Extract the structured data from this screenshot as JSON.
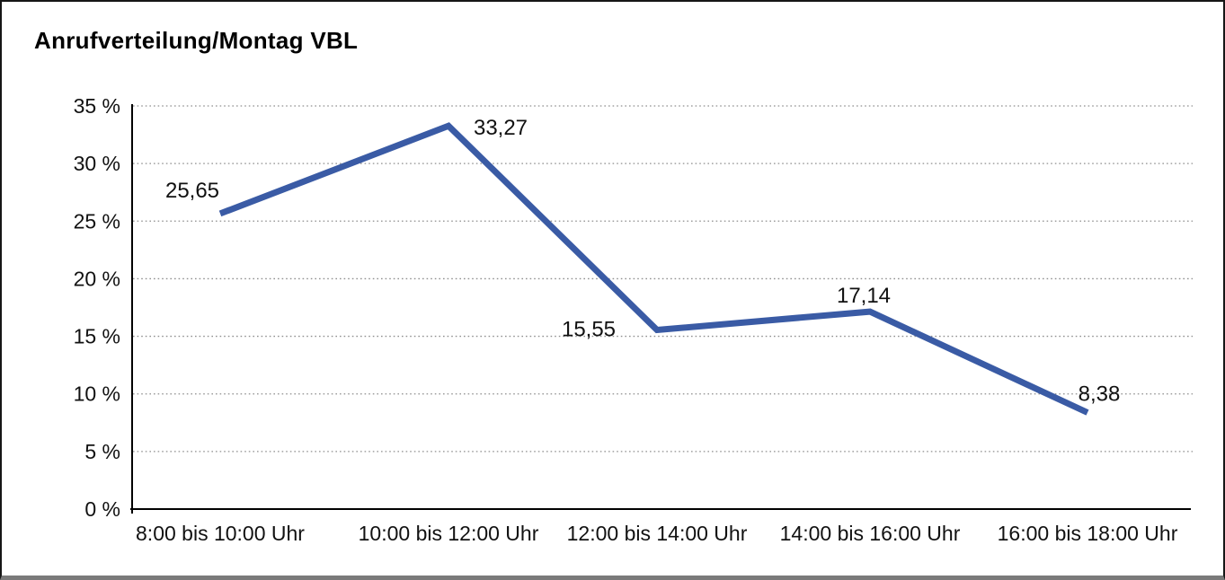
{
  "header": {
    "title": "Anrufverteilung/Montag VBL"
  },
  "chart_data": {
    "type": "line",
    "title": "Anrufverteilung/Montag VBL",
    "categories": [
      "8:00 bis 10:00 Uhr",
      "10:00 bis 12:00 Uhr",
      "12:00 bis 14:00 Uhr",
      "14:00 bis 16:00 Uhr",
      "16:00 bis 18:00 Uhr"
    ],
    "values": [
      25.65,
      33.27,
      15.55,
      17.14,
      8.38
    ],
    "data_labels": [
      "25,65",
      "33,27",
      "15,55",
      "17,14",
      "8,38"
    ],
    "y_ticks": [
      "35 %",
      "30 %",
      "25 %",
      "20 %",
      "15 %",
      "10 %",
      "5 %",
      "0 %"
    ],
    "y_tick_values": [
      35,
      30,
      25,
      20,
      15,
      10,
      5,
      0
    ],
    "ylim": [
      0,
      35
    ],
    "xlabel": "",
    "ylabel": "",
    "grid": "horizontal-dotted",
    "legend": "none",
    "line_color": "#3A5BA5",
    "grid_color": "#8f8f8f",
    "axis_color": "#000000",
    "text_color": "#111111"
  }
}
